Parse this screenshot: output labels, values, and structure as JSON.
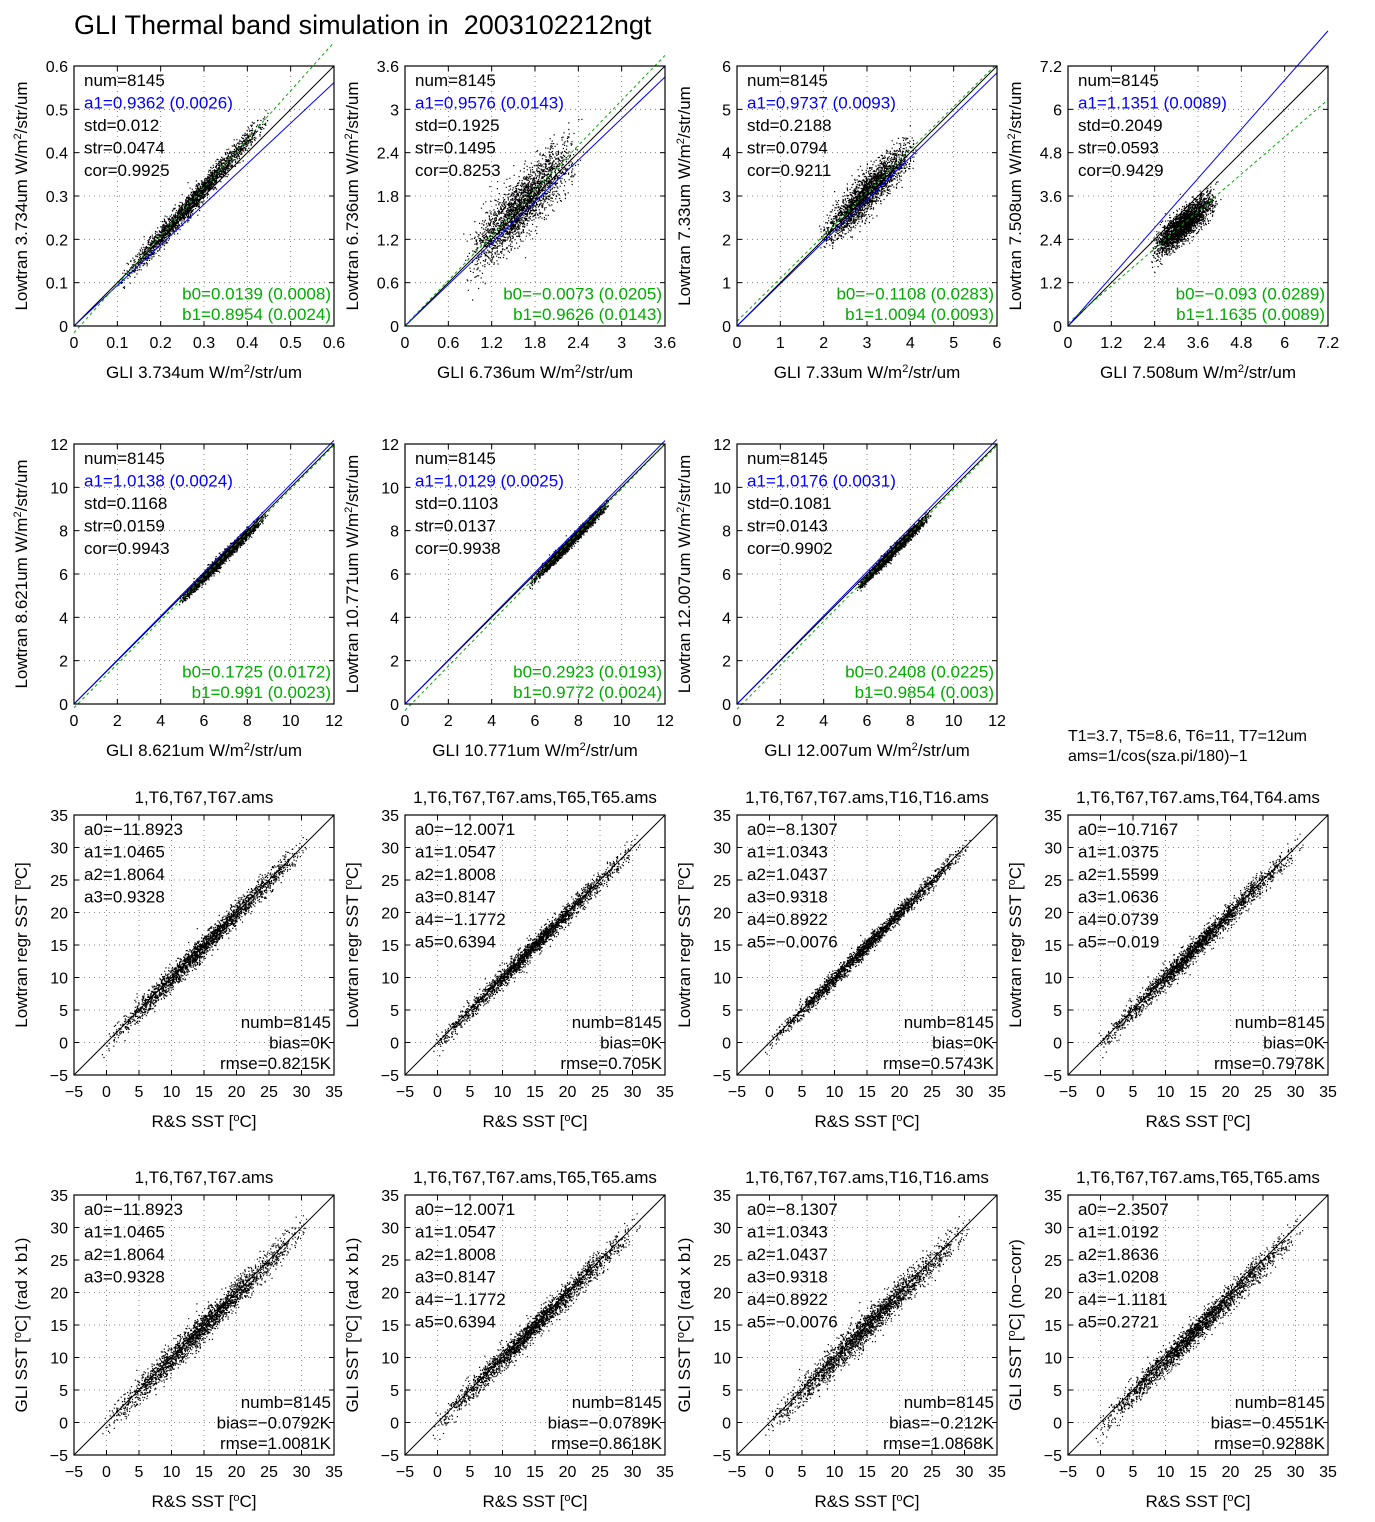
{
  "figure": {
    "title": "GLI Thermal band simulation in  2003102212ngt",
    "note_lines": [
      "T1=3.7, T5=8.6, T6=11, T7=12um",
      "ams=1/cos(sza.pi/180)−1"
    ]
  },
  "colors": {
    "a1_text": "#0000ff",
    "b_text": "#00aa00",
    "points": "#000000",
    "fit_blue": "#0000ff",
    "fit_green": "#00aa00",
    "identity": "#000000"
  },
  "chart_data": [
    {
      "type": "scatter",
      "row": 0,
      "col": 0,
      "title": "",
      "xlabel": "GLI 3.734um W/m²/str/um",
      "ylabel": "Lowtran 3.734um W/m²/str/um",
      "xlim": [
        0,
        0.6
      ],
      "ylim": [
        0,
        0.6
      ],
      "xticks": [
        "0",
        "0.1",
        "0.2",
        "0.3",
        "0.4",
        "0.5",
        "0.6"
      ],
      "yticks": [
        "0",
        "0.1",
        "0.2",
        "0.3",
        "0.4",
        "0.5",
        "0.6"
      ],
      "stats": [
        "num=8145",
        "a1=0.9362 (0.0026)",
        "std=0.012",
        "str=0.0474",
        "cor=0.9925"
      ],
      "fits": [
        "b0=0.0139 (0.0008)",
        "b1=0.8954 (0.0024)"
      ],
      "a1_slope": 0.9362,
      "b0": 0.0139,
      "b1": 0.8954,
      "cloud": {
        "x_range": [
          0.1,
          0.45
        ],
        "spread": 0.012,
        "n": 8145
      }
    },
    {
      "type": "scatter",
      "row": 0,
      "col": 1,
      "title": "",
      "xlabel": "GLI 6.736um W/m²/str/um",
      "ylabel": "Lowtran 6.736um W/m²/str/um",
      "xlim": [
        0,
        3.6
      ],
      "ylim": [
        0,
        3.6
      ],
      "xticks": [
        "0",
        "0.6",
        "1.2",
        "1.8",
        "2.4",
        "3",
        "3.6"
      ],
      "yticks": [
        "0",
        "0.6",
        "1.2",
        "1.8",
        "2.4",
        "3",
        "3.6"
      ],
      "stats": [
        "num=8145",
        "a1=0.9576 (0.0143)",
        "std=0.1925",
        "str=0.1495",
        "cor=0.8253"
      ],
      "fits": [
        "b0=−0.0073 (0.0205)",
        "b1=0.9626 (0.0143)"
      ],
      "a1_slope": 0.9576,
      "b0": -0.0073,
      "b1": 0.9626,
      "cloud": {
        "x_range": [
          0.85,
          2.4
        ],
        "spread": 0.1925,
        "n": 8145
      }
    },
    {
      "type": "scatter",
      "row": 0,
      "col": 2,
      "title": "",
      "xlabel": "GLI 7.33um W/m²/str/um",
      "ylabel": "Lowtran 7.33um W/m²/str/um",
      "xlim": [
        0,
        6
      ],
      "ylim": [
        0,
        6
      ],
      "xticks": [
        "0",
        "1",
        "2",
        "3",
        "4",
        "5",
        "6"
      ],
      "yticks": [
        "0",
        "1",
        "2",
        "3",
        "4",
        "5",
        "6"
      ],
      "stats": [
        "num=8145",
        "a1=0.9737 (0.0093)",
        "std=0.2188",
        "str=0.0794",
        "cor=0.9211"
      ],
      "fits": [
        "b0=−0.1108 (0.0283)",
        "b1=1.0094 (0.0093)"
      ],
      "a1_slope": 0.9737,
      "b0": -0.1108,
      "b1": 1.0094,
      "cloud": {
        "x_range": [
          1.9,
          4.1
        ],
        "spread": 0.2188,
        "n": 8145
      }
    },
    {
      "type": "scatter",
      "row": 0,
      "col": 3,
      "title": "",
      "xlabel": "GLI 7.508um W/m²/str/um",
      "ylabel": "Lowtran 7.508um W/m²/str/um",
      "xlim": [
        0,
        7.2
      ],
      "ylim": [
        0,
        7.2
      ],
      "xticks": [
        "0",
        "1.2",
        "2.4",
        "3.6",
        "4.8",
        "6",
        "7.2"
      ],
      "yticks": [
        "0",
        "1.2",
        "2.4",
        "3.6",
        "4.8",
        "6",
        "7.2"
      ],
      "stats": [
        "num=8145",
        "a1=1.1351 (0.0089)",
        "std=0.2049",
        "str=0.0593",
        "cor=0.9429"
      ],
      "fits": [
        "b0=−0.093 (0.0289)",
        "b1=1.1635 (0.0089)"
      ],
      "a1_slope": 1.1351,
      "b0": -0.093,
      "b1": 1.1635,
      "cloud": {
        "x_range": [
          2.3,
          4.1
        ],
        "spread": 0.2049,
        "n": 8145
      }
    },
    {
      "type": "scatter",
      "row": 1,
      "col": 0,
      "title": "",
      "xlabel": "GLI 8.621um W/m²/str/um",
      "ylabel": "Lowtran 8.621um W/m²/str/um",
      "xlim": [
        0,
        12
      ],
      "ylim": [
        0,
        12
      ],
      "xticks": [
        "0",
        "2",
        "4",
        "6",
        "8",
        "10",
        "12"
      ],
      "yticks": [
        "0",
        "2",
        "4",
        "6",
        "8",
        "10",
        "12"
      ],
      "stats": [
        "num=8145",
        "a1=1.0138 (0.0024)",
        "std=0.1168",
        "str=0.0159",
        "cor=0.9943"
      ],
      "fits": [
        "b0=0.1725 (0.0172)",
        "b1=0.991 (0.0023)"
      ],
      "a1_slope": 1.0138,
      "b0": 0.1725,
      "b1": 0.991,
      "cloud": {
        "x_range": [
          4.8,
          8.9
        ],
        "spread": 0.1168,
        "n": 8145
      }
    },
    {
      "type": "scatter",
      "row": 1,
      "col": 1,
      "title": "",
      "xlabel": "GLI 10.771um W/m²/str/um",
      "ylabel": "Lowtran 10.771um W/m²/str/um",
      "xlim": [
        0,
        12
      ],
      "ylim": [
        0,
        12
      ],
      "xticks": [
        "0",
        "2",
        "4",
        "6",
        "8",
        "10",
        "12"
      ],
      "yticks": [
        "0",
        "2",
        "4",
        "6",
        "8",
        "10",
        "12"
      ],
      "stats": [
        "num=8145",
        "a1=1.0129 (0.0025)",
        "std=0.1103",
        "str=0.0137",
        "cor=0.9938"
      ],
      "fits": [
        "b0=0.2923 (0.0193)",
        "b1=0.9772 (0.0024)"
      ],
      "a1_slope": 1.0129,
      "b0": 0.2923,
      "b1": 0.9772,
      "cloud": {
        "x_range": [
          5.7,
          9.4
        ],
        "spread": 0.1103,
        "n": 8145
      }
    },
    {
      "type": "scatter",
      "row": 1,
      "col": 2,
      "title": "",
      "xlabel": "GLI 12.007um W/m²/str/um",
      "ylabel": "Lowtran 12.007um W/m²/str/um",
      "xlim": [
        0,
        12
      ],
      "ylim": [
        0,
        12
      ],
      "xticks": [
        "0",
        "2",
        "4",
        "6",
        "8",
        "10",
        "12"
      ],
      "yticks": [
        "0",
        "2",
        "4",
        "6",
        "8",
        "10",
        "12"
      ],
      "stats": [
        "num=8145",
        "a1=1.0176 (0.0031)",
        "std=0.1081",
        "str=0.0143",
        "cor=0.9902"
      ],
      "fits": [
        "b0=0.2408 (0.0225)",
        "b1=0.9854 (0.003)"
      ],
      "a1_slope": 1.0176,
      "b0": 0.2408,
      "b1": 0.9854,
      "cloud": {
        "x_range": [
          5.5,
          8.9
        ],
        "spread": 0.1081,
        "n": 8145
      }
    },
    {
      "type": "scatter",
      "row": 2,
      "col": 0,
      "title": "1,T6,T67,T67.ams",
      "xlabel": "R&S SST [°C]",
      "ylabel": "Lowtran regr SST [°C]",
      "xlim": [
        -5,
        35
      ],
      "ylim": [
        -5,
        35
      ],
      "xticks": [
        "−5",
        "0",
        "5",
        "10",
        "15",
        "20",
        "25",
        "30",
        "35"
      ],
      "yticks": [
        "−5",
        "0",
        "5",
        "10",
        "15",
        "20",
        "25",
        "30",
        "35"
      ],
      "stats": [
        "a0=−11.8923",
        "a1=1.0465",
        "a2=1.8064",
        "a3=0.9328"
      ],
      "fits": [
        "numb=8145",
        "bias=0K",
        "rmse=0.8215K"
      ],
      "cloud": {
        "x_range": [
          -1,
          31
        ],
        "spread": 0.8215,
        "bias": 0,
        "n": 8145
      }
    },
    {
      "type": "scatter",
      "row": 2,
      "col": 1,
      "title": "1,T6,T67,T67.ams,T65,T65.ams",
      "xlabel": "R&S SST [°C]",
      "ylabel": "Lowtran regr SST [°C]",
      "xlim": [
        -5,
        35
      ],
      "ylim": [
        -5,
        35
      ],
      "xticks": [
        "−5",
        "0",
        "5",
        "10",
        "15",
        "20",
        "25",
        "30",
        "35"
      ],
      "yticks": [
        "−5",
        "0",
        "5",
        "10",
        "15",
        "20",
        "25",
        "30",
        "35"
      ],
      "stats": [
        "a0=−12.0071",
        "a1=1.0547",
        "a2=1.8008",
        "a3=0.8147",
        "a4=−1.1772",
        "a5=0.6394"
      ],
      "fits": [
        "numb=8145",
        "bias=0K",
        "rmse=0.705K"
      ],
      "cloud": {
        "x_range": [
          -1,
          31
        ],
        "spread": 0.705,
        "bias": 0,
        "n": 8145
      }
    },
    {
      "type": "scatter",
      "row": 2,
      "col": 2,
      "title": "1,T6,T67,T67.ams,T16,T16.ams",
      "xlabel": "R&S SST [°C]",
      "ylabel": "Lowtran regr SST [°C]",
      "xlim": [
        -5,
        35
      ],
      "ylim": [
        -5,
        35
      ],
      "xticks": [
        "−5",
        "0",
        "5",
        "10",
        "15",
        "20",
        "25",
        "30",
        "35"
      ],
      "yticks": [
        "−5",
        "0",
        "5",
        "10",
        "15",
        "20",
        "25",
        "30",
        "35"
      ],
      "stats": [
        "a0=−8.1307",
        "a1=1.0343",
        "a2=1.0437",
        "a3=0.9318",
        "a4=0.8922",
        "a5=−0.0076"
      ],
      "fits": [
        "numb=8145",
        "bias=0K",
        "rmse=0.5743K"
      ],
      "cloud": {
        "x_range": [
          -1,
          31
        ],
        "spread": 0.5743,
        "bias": 0,
        "n": 8145
      }
    },
    {
      "type": "scatter",
      "row": 2,
      "col": 3,
      "title": "1,T6,T67,T67.ams,T64,T64.ams",
      "xlabel": "R&S SST [°C]",
      "ylabel": "Lowtran regr SST [°C]",
      "xlim": [
        -5,
        35
      ],
      "ylim": [
        -5,
        35
      ],
      "xticks": [
        "−5",
        "0",
        "5",
        "10",
        "15",
        "20",
        "25",
        "30",
        "35"
      ],
      "yticks": [
        "−5",
        "0",
        "5",
        "10",
        "15",
        "20",
        "25",
        "30",
        "35"
      ],
      "stats": [
        "a0=−10.7167",
        "a1=1.0375",
        "a2=1.5599",
        "a3=1.0636",
        "a4=0.0739",
        "a5=−0.019"
      ],
      "fits": [
        "numb=8145",
        "bias=0K",
        "rmse=0.7978K"
      ],
      "cloud": {
        "x_range": [
          -1,
          31
        ],
        "spread": 0.7978,
        "bias": 0,
        "n": 8145
      }
    },
    {
      "type": "scatter",
      "row": 3,
      "col": 0,
      "title": "1,T6,T67,T67.ams",
      "xlabel": "R&S SST [°C]",
      "ylabel": "GLI SST [°C] (rad x b1)",
      "xlim": [
        -5,
        35
      ],
      "ylim": [
        -5,
        35
      ],
      "xticks": [
        "−5",
        "0",
        "5",
        "10",
        "15",
        "20",
        "25",
        "30",
        "35"
      ],
      "yticks": [
        "−5",
        "0",
        "5",
        "10",
        "15",
        "20",
        "25",
        "30",
        "35"
      ],
      "stats": [
        "a0=−11.8923",
        "a1=1.0465",
        "a2=1.8064",
        "a3=0.9328"
      ],
      "fits": [
        "numb=8145",
        "bias=−0.0792K",
        "rmse=1.0081K"
      ],
      "cloud": {
        "x_range": [
          -1,
          31
        ],
        "spread": 1.0081,
        "bias": -0.0792,
        "n": 8145
      }
    },
    {
      "type": "scatter",
      "row": 3,
      "col": 1,
      "title": "1,T6,T67,T67.ams,T65,T65.ams",
      "xlabel": "R&S SST [°C]",
      "ylabel": "GLI SST [°C] (rad x b1)",
      "xlim": [
        -5,
        35
      ],
      "ylim": [
        -5,
        35
      ],
      "xticks": [
        "−5",
        "0",
        "5",
        "10",
        "15",
        "20",
        "25",
        "30",
        "35"
      ],
      "yticks": [
        "−5",
        "0",
        "5",
        "10",
        "15",
        "20",
        "25",
        "30",
        "35"
      ],
      "stats": [
        "a0=−12.0071",
        "a1=1.0547",
        "a2=1.8008",
        "a3=0.8147",
        "a4=−1.1772",
        "a5=0.6394"
      ],
      "fits": [
        "numb=8145",
        "bias=−0.0789K",
        "rmse=0.8618K"
      ],
      "cloud": {
        "x_range": [
          -1,
          31
        ],
        "spread": 0.8618,
        "bias": -0.0789,
        "n": 8145
      }
    },
    {
      "type": "scatter",
      "row": 3,
      "col": 2,
      "title": "1,T6,T67,T67.ams,T16,T16.ams",
      "xlabel": "R&S SST [°C]",
      "ylabel": "GLI SST [°C] (rad x b1)",
      "xlim": [
        -5,
        35
      ],
      "ylim": [
        -5,
        35
      ],
      "xticks": [
        "−5",
        "0",
        "5",
        "10",
        "15",
        "20",
        "25",
        "30",
        "35"
      ],
      "yticks": [
        "−5",
        "0",
        "5",
        "10",
        "15",
        "20",
        "25",
        "30",
        "35"
      ],
      "stats": [
        "a0=−8.1307",
        "a1=1.0343",
        "a2=1.0437",
        "a3=0.9318",
        "a4=0.8922",
        "a5=−0.0076"
      ],
      "fits": [
        "numb=8145",
        "bias=−0.212K",
        "rmse=1.0868K"
      ],
      "cloud": {
        "x_range": [
          -1,
          31
        ],
        "spread": 1.0868,
        "bias": -0.212,
        "n": 8145
      }
    },
    {
      "type": "scatter",
      "row": 3,
      "col": 3,
      "title": "1,T6,T67,T67.ams,T65,T65.ams",
      "xlabel": "R&S SST [°C]",
      "ylabel": "GLI SST [°C] (no−corr)",
      "xlim": [
        -5,
        35
      ],
      "ylim": [
        -5,
        35
      ],
      "xticks": [
        "−5",
        "0",
        "5",
        "10",
        "15",
        "20",
        "25",
        "30",
        "35"
      ],
      "yticks": [
        "−5",
        "0",
        "5",
        "10",
        "15",
        "20",
        "25",
        "30",
        "35"
      ],
      "stats": [
        "a0=−2.3507",
        "a1=1.0192",
        "a2=1.8636",
        "a3=1.0208",
        "a4=−1.1181",
        "a5=0.2721"
      ],
      "fits": [
        "numb=8145",
        "bias=−0.4551K",
        "rmse=0.9288K"
      ],
      "cloud": {
        "x_range": [
          -1,
          31
        ],
        "spread": 0.9288,
        "bias": -0.4551,
        "n": 8145
      }
    }
  ]
}
